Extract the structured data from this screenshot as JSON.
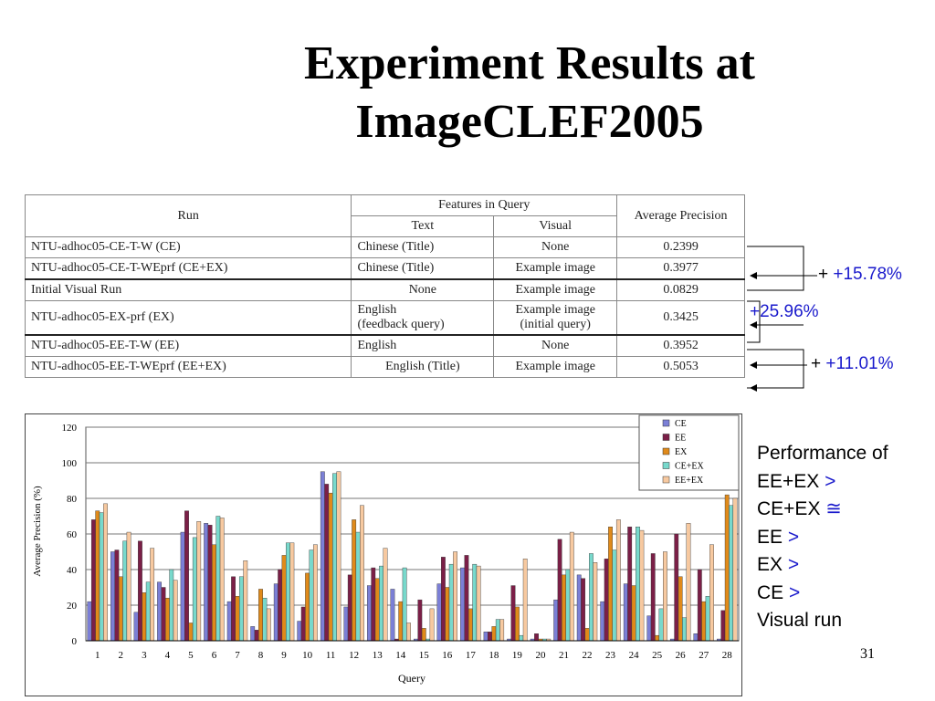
{
  "title": {
    "line1": "Experiment Results at",
    "line2": "ImageCLEF2005"
  },
  "table": {
    "headers": {
      "run": "Run",
      "features": "Features in Query",
      "text": "Text",
      "visual": "Visual",
      "ap": "Average Precision"
    },
    "rows": [
      {
        "run": "NTU-adhoc05-CE-T-W (CE)",
        "text": "Chinese (Title)",
        "visual": "None",
        "ap": "0.2399"
      },
      {
        "run": "NTU-adhoc05-CE-T-WEprf (CE+EX)",
        "text": "Chinese (Title)",
        "visual": "Example image",
        "ap": "0.3977"
      },
      {
        "run": "Initial Visual Run",
        "text": "None",
        "visual": "Example image",
        "ap": "0.0829"
      },
      {
        "run": "NTU-adhoc05-EX-prf (EX)",
        "text": "English\n(feedback query)",
        "visual": "Example image\n(initial query)",
        "ap": "0.3425"
      },
      {
        "run": "NTU-adhoc05-EE-T-W (EE)",
        "text": "English",
        "visual": "None",
        "ap": "0.3952"
      },
      {
        "run": "NTU-adhoc05-EE-T-WEprf (EE+EX)",
        "text": "English (Title)",
        "visual": "Example image",
        "ap": "0.5053"
      }
    ]
  },
  "annotations": [
    {
      "sign": "+",
      "value": "+15.78%"
    },
    {
      "sign": "+",
      "value": "25.96%"
    },
    {
      "sign": "+",
      "value": "+11.01%"
    }
  ],
  "side_text": [
    {
      "label": "Performance of",
      "op": ""
    },
    {
      "label": "EE+EX",
      "op": ">"
    },
    {
      "label": "CE+EX",
      "op": "≅"
    },
    {
      "label": "EE",
      "op": ">"
    },
    {
      "label": "EX",
      "op": ">"
    },
    {
      "label": "CE",
      "op": ">"
    },
    {
      "label": "Visual run",
      "op": ""
    }
  ],
  "page_number": "31",
  "chart_data": {
    "type": "bar",
    "xlabel": "Query",
    "ylabel": "Average Precision (%)",
    "ylim": [
      0,
      120
    ],
    "yticks": [
      0,
      20,
      40,
      60,
      80,
      100,
      120
    ],
    "grid": true,
    "legend_position": "top-right",
    "categories": [
      "1",
      "2",
      "3",
      "4",
      "5",
      "6",
      "7",
      "8",
      "9",
      "10",
      "11",
      "12",
      "13",
      "14",
      "15",
      "16",
      "17",
      "18",
      "19",
      "20",
      "21",
      "22",
      "23",
      "24",
      "25",
      "26",
      "27",
      "28"
    ],
    "series": [
      {
        "name": "CE",
        "color": "#7b7fd6",
        "values": [
          22,
          50,
          16,
          33,
          61,
          66,
          22,
          8,
          32,
          11,
          95,
          19,
          31,
          29,
          1,
          32,
          41,
          5,
          1,
          1,
          23,
          37,
          22,
          32,
          14,
          1,
          4,
          1
        ]
      },
      {
        "name": "EE",
        "color": "#7b1f47",
        "values": [
          68,
          51,
          56,
          30,
          73,
          65,
          36,
          6,
          40,
          19,
          88,
          37,
          41,
          1,
          23,
          47,
          48,
          5,
          31,
          4,
          57,
          35,
          46,
          64,
          49,
          60,
          40,
          17
        ]
      },
      {
        "name": "EX",
        "color": "#e08a1a",
        "values": [
          73,
          36,
          27,
          24,
          10,
          54,
          25,
          29,
          48,
          38,
          83,
          68,
          35,
          22,
          7,
          30,
          18,
          8,
          19,
          1,
          37,
          7,
          64,
          31,
          3,
          36,
          22,
          82
        ]
      },
      {
        "name": "CE+EX",
        "color": "#78d9cc",
        "values": [
          72,
          56,
          33,
          40,
          58,
          70,
          36,
          24,
          55,
          51,
          94,
          61,
          42,
          41,
          1,
          43,
          43,
          12,
          3,
          1,
          40,
          49,
          51,
          64,
          18,
          13,
          25,
          76
        ]
      },
      {
        "name": "EE+EX",
        "color": "#f7c9a0",
        "values": [
          77,
          61,
          52,
          34,
          67,
          69,
          45,
          18,
          55,
          54,
          95,
          76,
          52,
          10,
          18,
          50,
          42,
          12,
          46,
          1,
          61,
          44,
          68,
          62,
          50,
          66,
          54,
          80
        ]
      }
    ]
  }
}
